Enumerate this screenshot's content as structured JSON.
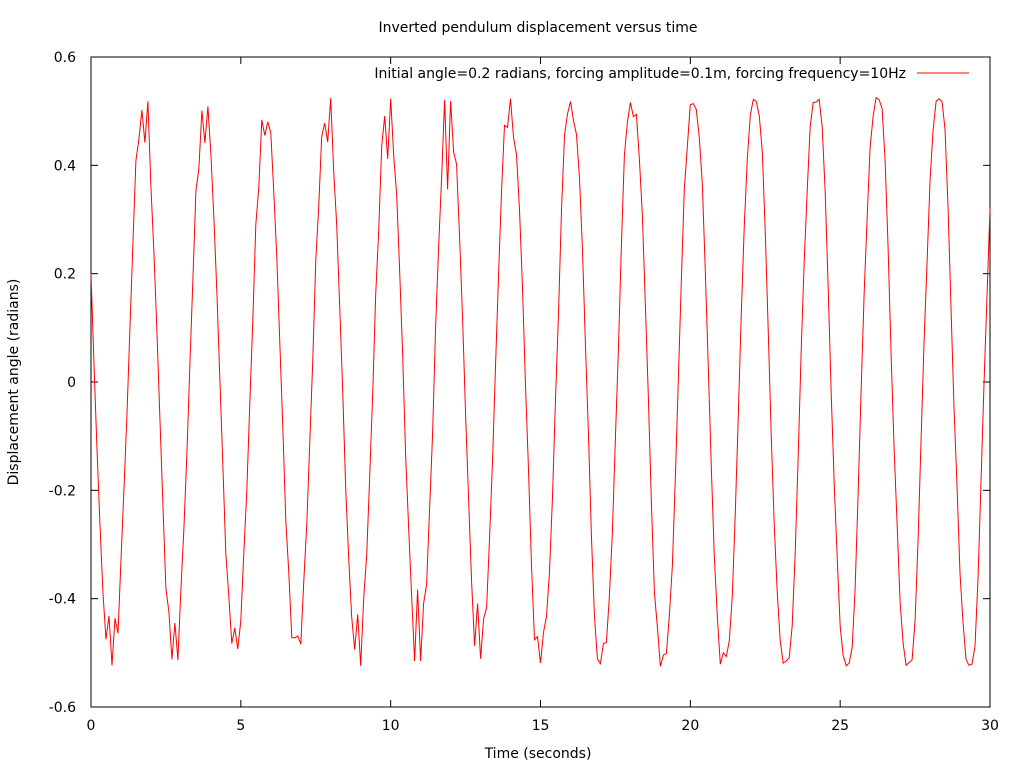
{
  "chart_data": {
    "type": "line",
    "title": "Inverted pendulum displacement versus time",
    "xlabel": "Time (seconds)",
    "ylabel": "Displacement angle (radians)",
    "xlim": [
      0,
      30
    ],
    "ylim": [
      -0.6,
      0.6
    ],
    "xticks": [
      {
        "value": 0,
        "label": "0"
      },
      {
        "value": 5,
        "label": "5"
      },
      {
        "value": 10,
        "label": "10"
      },
      {
        "value": 15,
        "label": "15"
      },
      {
        "value": 20,
        "label": "20"
      },
      {
        "value": 25,
        "label": "25"
      },
      {
        "value": 30,
        "label": "30"
      }
    ],
    "yticks": [
      {
        "value": -0.6,
        "label": "-0.6"
      },
      {
        "value": -0.4,
        "label": "-0.4"
      },
      {
        "value": -0.2,
        "label": "-0.2"
      },
      {
        "value": 0,
        "label": "0"
      },
      {
        "value": 0.2,
        "label": "0.2"
      },
      {
        "value": 0.4,
        "label": "0.4"
      },
      {
        "value": 0.6,
        "label": "0.6"
      }
    ],
    "grid": false,
    "legend_position": "top-right",
    "series": [
      {
        "name": "Initial angle=0.2 radians, forcing amplitude=0.1m, forcing frequency=10Hz",
        "color": "#ff0000",
        "x": [
          0,
          0.1,
          0.2,
          0.3,
          0.4,
          0.5,
          0.6,
          0.7,
          0.8,
          0.9,
          1.0,
          1.1,
          1.2,
          1.3,
          1.4,
          1.5,
          1.6,
          1.7,
          1.8,
          1.9,
          2.0,
          2.1,
          2.2,
          2.3,
          2.4,
          2.5,
          2.6,
          2.7,
          2.8,
          2.9,
          3.0,
          3.1,
          3.2,
          3.3,
          3.4,
          3.5,
          3.6,
          3.7,
          3.8,
          3.9,
          4.0,
          4.1,
          4.2,
          4.3,
          4.4,
          4.5,
          4.6,
          4.7,
          4.8,
          4.9,
          5.0,
          5.1,
          5.2,
          5.3,
          5.4,
          5.5,
          5.6,
          5.7,
          5.8,
          5.9,
          6.0,
          6.1,
          6.2,
          6.3,
          6.4,
          6.5,
          6.6,
          6.7,
          6.8,
          6.9,
          7.0,
          7.1,
          7.2,
          7.3,
          7.4,
          7.5,
          7.6,
          7.7,
          7.8,
          7.9,
          8.0,
          8.1,
          8.2,
          8.3,
          8.4,
          8.5,
          8.6,
          8.7,
          8.8,
          8.9,
          9.0,
          9.1,
          9.2,
          9.3,
          9.4,
          9.5,
          9.6,
          9.7,
          9.8,
          9.9,
          10.0,
          10.1,
          10.2,
          10.3,
          10.4,
          10.5,
          10.6,
          10.7,
          10.8,
          10.9,
          11.0,
          11.1,
          11.2,
          11.3,
          11.4,
          11.5,
          11.6,
          11.7,
          11.8,
          11.9,
          12.0,
          12.1,
          12.2,
          12.3,
          12.4,
          12.5,
          12.6,
          12.7,
          12.8,
          12.9,
          13.0,
          13.1,
          13.2,
          13.3,
          13.4,
          13.5,
          13.6,
          13.7,
          13.8,
          13.9,
          14.0,
          14.1,
          14.2,
          14.3,
          14.4,
          14.5,
          14.6,
          14.7,
          14.8,
          14.9,
          15.0,
          15.1,
          15.2,
          15.3,
          15.4,
          15.5,
          15.6,
          15.7,
          15.8,
          15.9,
          16.0,
          16.1,
          16.2,
          16.3,
          16.4,
          16.5,
          16.6,
          16.7,
          16.8,
          16.9,
          17.0,
          17.1,
          17.2,
          17.3,
          17.4,
          17.5,
          17.6,
          17.7,
          17.8,
          17.9,
          18.0,
          18.1,
          18.2,
          18.3,
          18.4,
          18.5,
          18.6,
          18.7,
          18.8,
          18.9,
          19.0,
          19.1,
          19.2,
          19.3,
          19.4,
          19.5,
          19.6,
          19.7,
          19.8,
          19.9,
          20.0,
          20.1,
          20.2,
          20.3,
          20.4,
          20.5,
          20.6,
          20.7,
          20.8,
          20.9,
          21.0,
          21.1,
          21.2,
          21.3,
          21.4,
          21.5,
          21.6,
          21.7,
          21.8,
          21.9,
          22.0,
          22.1,
          22.2,
          22.3,
          22.4,
          22.5,
          22.6,
          22.7,
          22.8,
          22.9,
          23.0,
          23.1,
          23.2,
          23.3,
          23.4,
          23.5,
          23.6,
          23.7,
          23.8,
          23.9,
          24.0,
          24.1,
          24.2,
          24.3,
          24.4,
          24.5,
          24.6,
          24.7,
          24.8,
          24.9,
          25.0,
          25.1,
          25.2,
          25.3,
          25.4,
          25.5,
          25.6,
          25.7,
          25.8,
          25.9,
          26.0,
          26.1,
          26.2,
          26.3,
          26.4,
          26.5,
          26.6,
          26.7,
          26.8,
          26.9,
          27.0,
          27.1,
          27.2,
          27.3,
          27.4,
          27.5,
          27.6,
          27.7,
          27.8,
          27.9,
          28.0,
          28.1,
          28.2,
          28.3,
          28.4,
          28.5,
          28.6,
          28.7,
          28.8,
          28.9,
          29.0,
          29.1,
          29.2,
          29.3,
          29.4,
          29.5,
          29.6,
          29.7,
          29.8,
          29.9,
          30.0
        ],
        "y": [
          0.2,
          0.032,
          -0.124,
          -0.265,
          -0.391,
          -0.475,
          -0.432,
          -0.523,
          -0.436,
          -0.464,
          -0.328,
          -0.196,
          -0.058,
          0.103,
          0.26,
          0.409,
          0.448,
          0.502,
          0.442,
          0.518,
          0.361,
          0.241,
          0.095,
          -0.067,
          -0.226,
          -0.381,
          -0.424,
          -0.512,
          -0.445,
          -0.513,
          -0.383,
          -0.271,
          -0.132,
          0.033,
          0.189,
          0.352,
          0.395,
          0.501,
          0.441,
          0.509,
          0.42,
          0.302,
          0.165,
          0.003,
          -0.156,
          -0.316,
          -0.395,
          -0.483,
          -0.454,
          -0.493,
          -0.441,
          -0.316,
          -0.201,
          -0.04,
          0.113,
          0.29,
          0.359,
          0.484,
          0.455,
          0.48,
          0.46,
          0.35,
          0.23,
          0.073,
          -0.083,
          -0.256,
          -0.352,
          -0.472,
          -0.472,
          -0.469,
          -0.484,
          -0.367,
          -0.262,
          -0.11,
          0.042,
          0.226,
          0.323,
          0.453,
          0.478,
          0.443,
          0.524,
          0.389,
          0.29,
          0.14,
          -0.016,
          -0.196,
          -0.325,
          -0.434,
          -0.494,
          -0.429,
          -0.524,
          -0.399,
          -0.32,
          -0.174,
          -0.022,
          0.162,
          0.279,
          0.435,
          0.491,
          0.412,
          0.523,
          0.418,
          0.345,
          0.203,
          0.048,
          -0.134,
          -0.267,
          -0.394,
          -0.515,
          -0.383,
          -0.515,
          -0.409,
          -0.374,
          -0.234,
          -0.095,
          0.101,
          0.248,
          0.376,
          0.521,
          0.356,
          0.519,
          0.425,
          0.402,
          0.266,
          0.117,
          -0.061,
          -0.216,
          -0.369,
          -0.487,
          -0.409,
          -0.511,
          -0.437,
          -0.417,
          -0.286,
          -0.142,
          0.034,
          0.194,
          0.351,
          0.474,
          0.47,
          0.523,
          0.452,
          0.42,
          0.318,
          0.174,
          -0.006,
          -0.162,
          -0.339,
          -0.476,
          -0.47,
          -0.519,
          -0.462,
          -0.433,
          -0.35,
          -0.212,
          -0.031,
          0.126,
          0.318,
          0.455,
          0.495,
          0.518,
          0.483,
          0.457,
          0.376,
          0.243,
          0.065,
          -0.093,
          -0.283,
          -0.43,
          -0.511,
          -0.52,
          -0.483,
          -0.481,
          -0.395,
          -0.277,
          -0.104,
          0.06,
          0.253,
          0.419,
          0.48,
          0.516,
          0.49,
          0.494,
          0.411,
          0.307,
          0.14,
          -0.03,
          -0.223,
          -0.388,
          -0.453,
          -0.525,
          -0.504,
          -0.501,
          -0.43,
          -0.338,
          -0.174,
          0.002,
          0.185,
          0.355,
          0.434,
          0.512,
          0.514,
          0.503,
          0.451,
          0.367,
          0.205,
          0.027,
          -0.157,
          -0.321,
          -0.432,
          -0.521,
          -0.5,
          -0.507,
          -0.478,
          -0.395,
          -0.241,
          -0.062,
          0.127,
          0.289,
          0.412,
          0.492,
          0.522,
          0.518,
          0.491,
          0.425,
          0.275,
          0.097,
          -0.097,
          -0.262,
          -0.387,
          -0.477,
          -0.519,
          -0.515,
          -0.509,
          -0.45,
          -0.315,
          -0.137,
          0.059,
          0.222,
          0.353,
          0.472,
          0.516,
          0.517,
          0.522,
          0.471,
          0.35,
          0.173,
          -0.021,
          -0.187,
          -0.325,
          -0.452,
          -0.505,
          -0.524,
          -0.519,
          -0.49,
          -0.382,
          -0.208,
          -0.017,
          0.161,
          0.301,
          0.433,
          0.49,
          0.525,
          0.521,
          0.505,
          0.41,
          0.248,
          0.051,
          -0.123,
          -0.262,
          -0.406,
          -0.482,
          -0.523,
          -0.518,
          -0.513,
          -0.44,
          -0.291,
          -0.105,
          0.077,
          0.223,
          0.374,
          0.465,
          0.518,
          0.523,
          0.517,
          0.467,
          0.325,
          0.138,
          -0.047,
          -0.19,
          -0.353,
          -0.443,
          -0.512,
          -0.523,
          -0.521,
          -0.488,
          -0.364,
          -0.185,
          -0.004,
          0.159,
          0.32
        ]
      }
    ]
  }
}
